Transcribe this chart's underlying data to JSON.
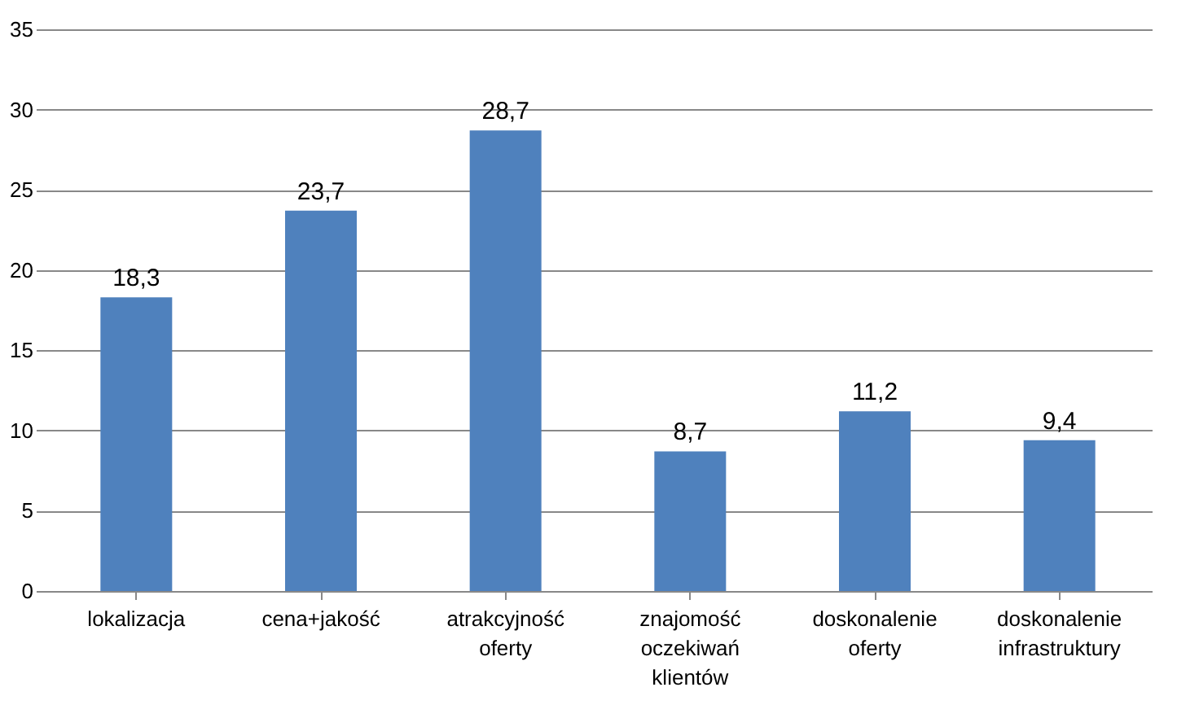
{
  "chart_data": {
    "type": "bar",
    "categories": [
      "lokalizacja",
      "cena+jakość",
      "atrakcyjność oferty",
      "znajomość oczekiwań klientów",
      "doskonalenie oferty",
      "doskonalenie infrastruktury"
    ],
    "values": [
      18.3,
      23.7,
      28.7,
      8.7,
      11.2,
      9.4
    ],
    "value_labels": [
      "18,3",
      "23,7",
      "28,7",
      "8,7",
      "11,2",
      "9,4"
    ],
    "color": "#4f81bd",
    "ylim": [
      0,
      35
    ],
    "yticks": [
      0,
      5,
      10,
      15,
      20,
      25,
      30,
      35
    ],
    "grid": "y"
  }
}
